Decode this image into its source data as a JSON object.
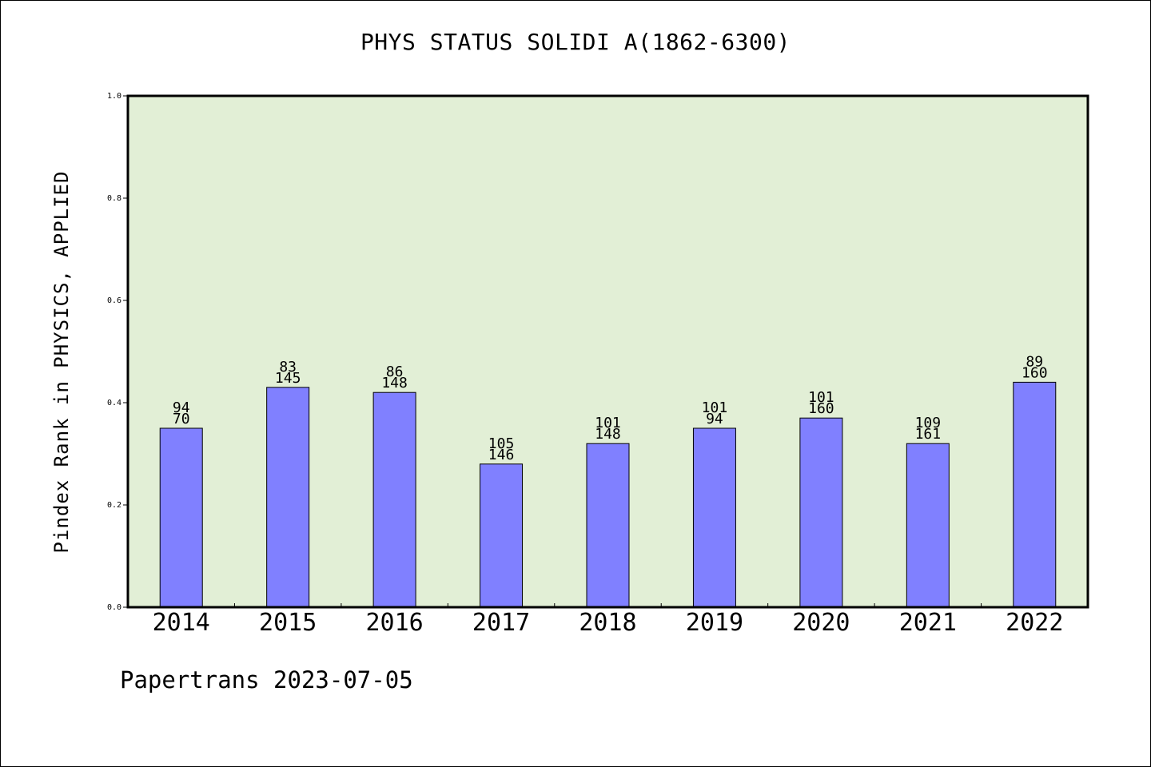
{
  "chart_data": {
    "type": "bar",
    "title": "PHYS STATUS SOLIDI A(1862-6300)",
    "xlabel": "",
    "ylabel": "Pindex Rank in PHYSICS, APPLIED",
    "ylim": [
      0,
      1.0
    ],
    "yticks": [
      "0.0",
      "0.2",
      "0.4",
      "0.6",
      "0.8",
      "1.0"
    ],
    "categories": [
      "2014",
      "2015",
      "2016",
      "2017",
      "2018",
      "2019",
      "2020",
      "2021",
      "2022"
    ],
    "values": [
      0.35,
      0.43,
      0.42,
      0.28,
      0.32,
      0.35,
      0.37,
      0.32,
      0.44
    ],
    "labels_top": [
      "94",
      "83",
      "86",
      "105",
      "101",
      "101",
      "101",
      "109",
      "89"
    ],
    "labels_bottom": [
      "70",
      "145",
      "148",
      "146",
      "148",
      "94",
      "160",
      "161",
      "160"
    ],
    "grid": false,
    "legend": "none",
    "colors": {
      "plot_background": "#e2efd6",
      "bar_fill": "#8080ff",
      "bar_stroke": "#000000",
      "axis": "#000000"
    }
  },
  "footer": {
    "text": "Papertrans 2023-07-05"
  }
}
